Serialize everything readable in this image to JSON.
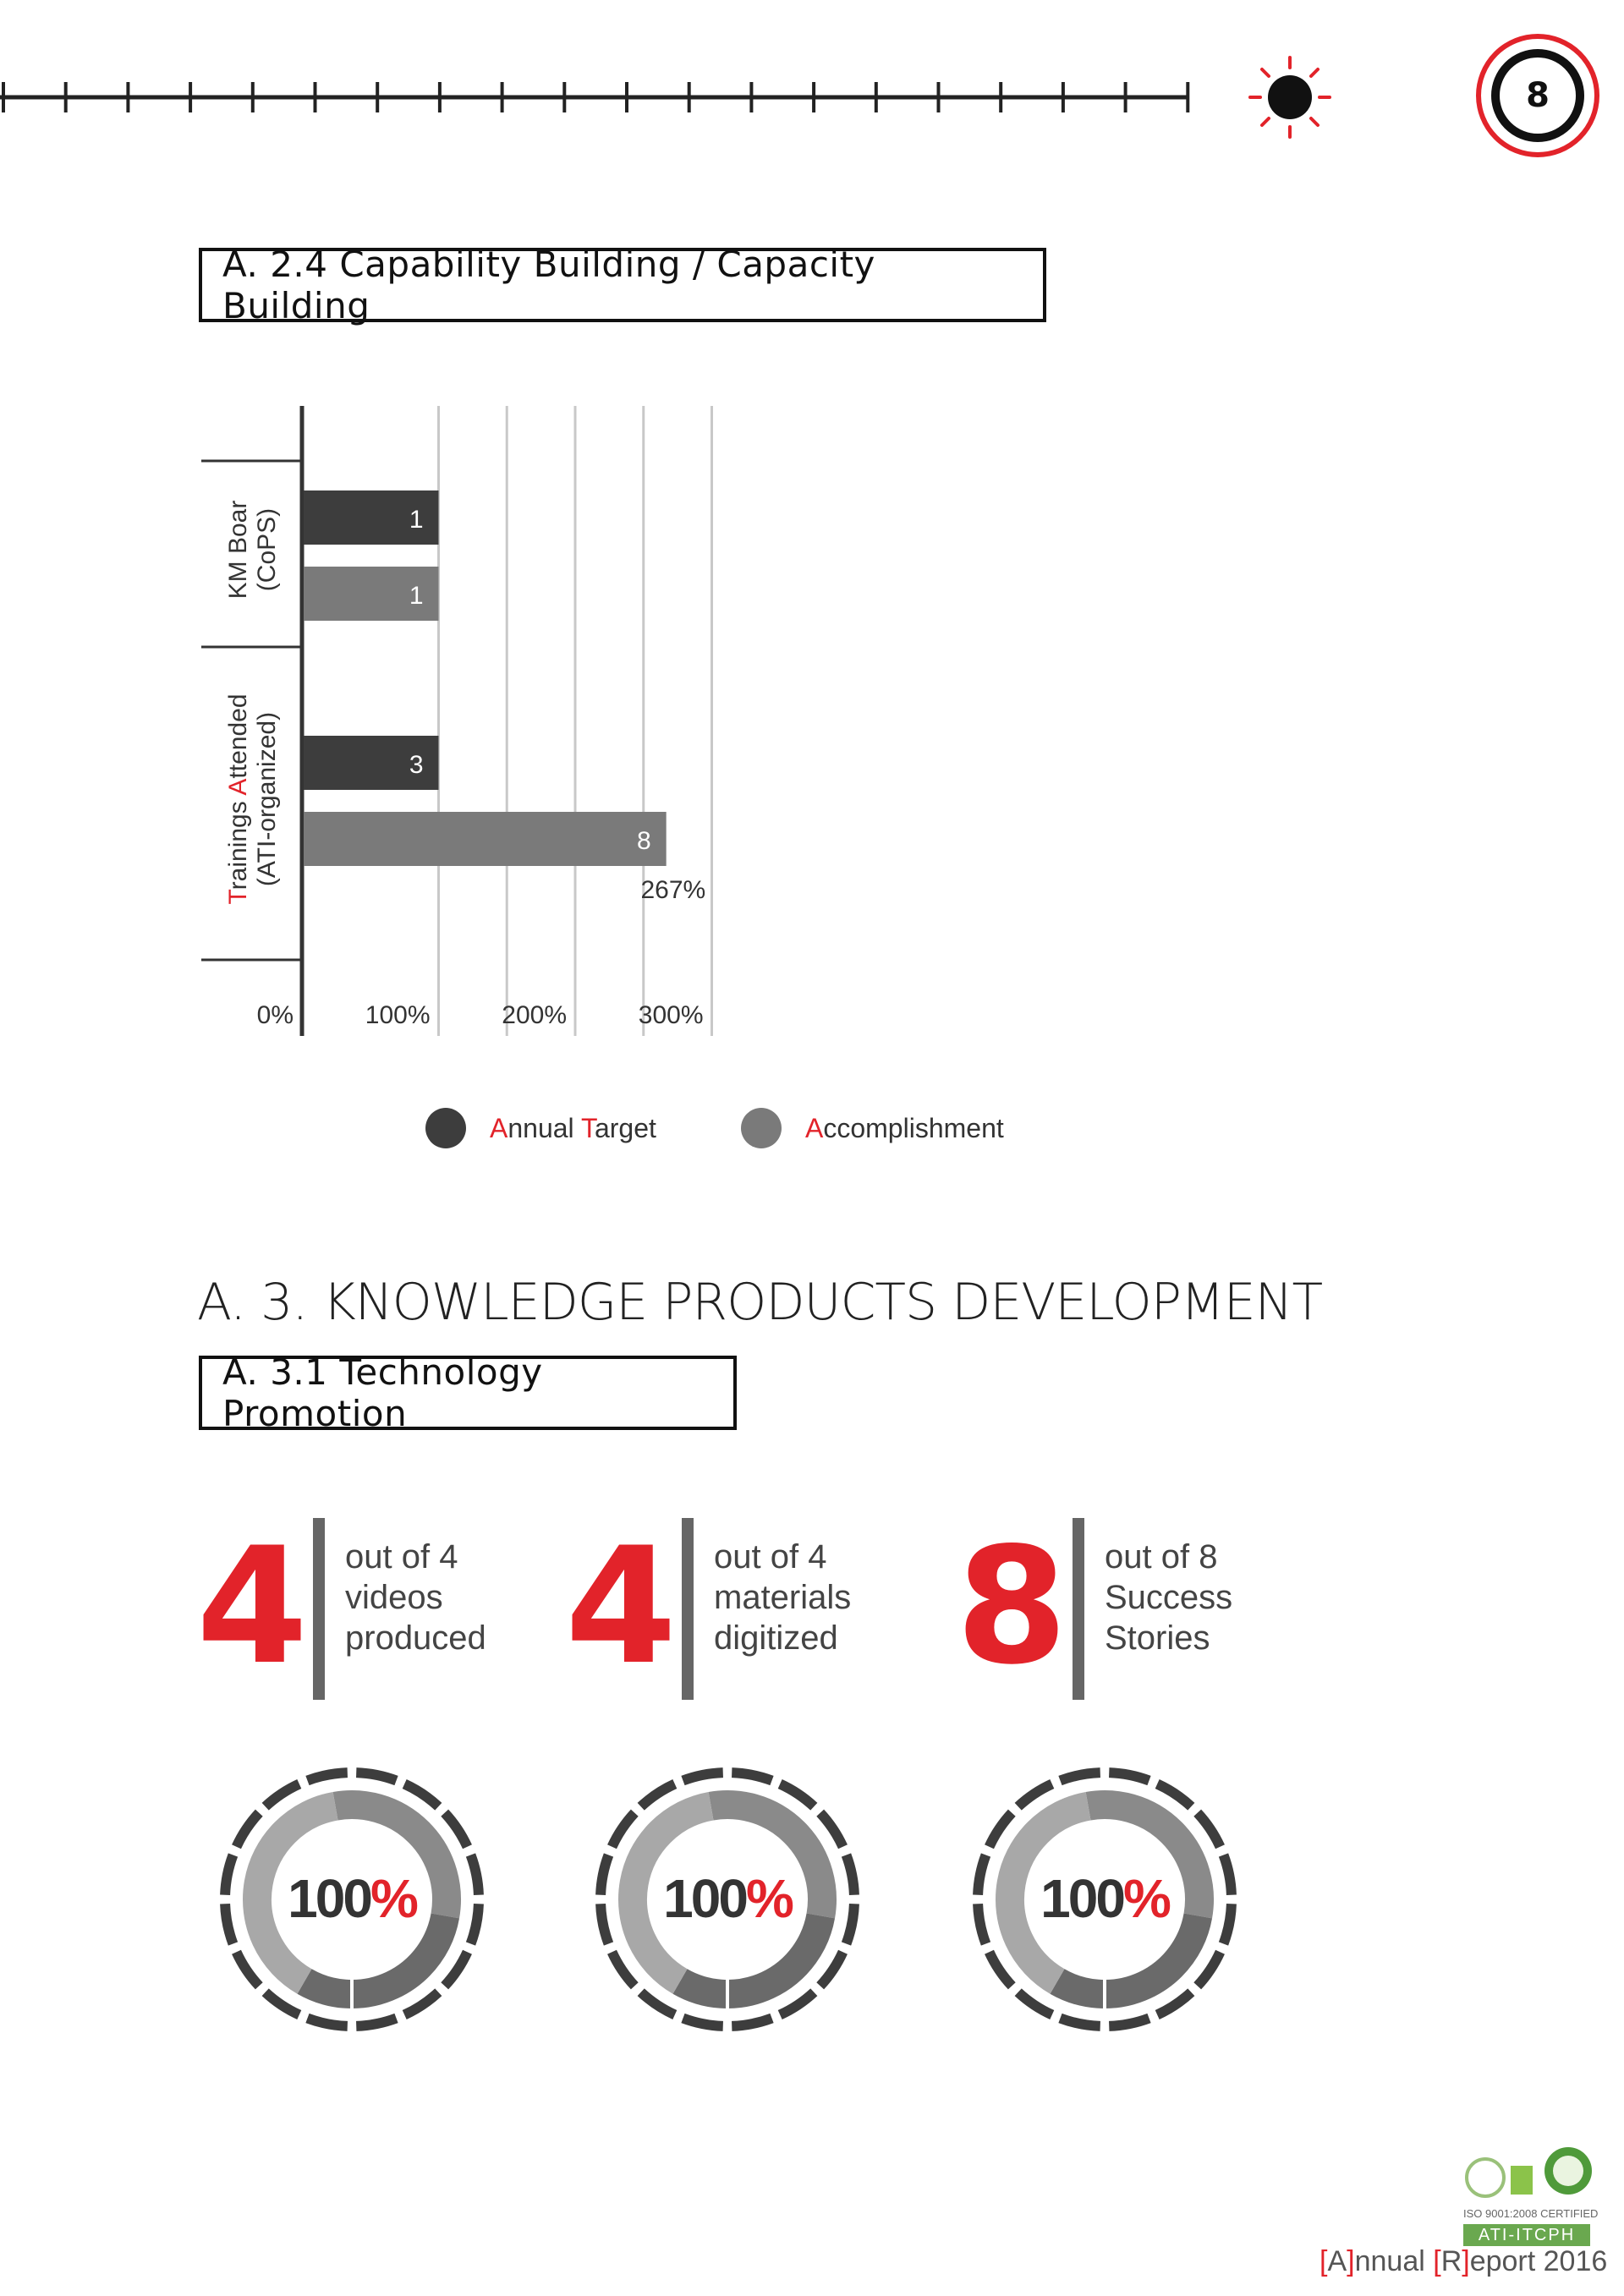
{
  "header": {
    "page_number": "8"
  },
  "section_a24": {
    "title": "A. 2.4 Capability Building / Capacity Building"
  },
  "chart_data": {
    "type": "bar",
    "orientation": "horizontal",
    "categories": [
      {
        "line1": "KM Boar",
        "line2": "(CoPS)",
        "first_letter_highlight": false
      },
      {
        "line1_first": "T",
        "line1_a": "rainings ",
        "line1_hl": "A",
        "line1_b": "ttended",
        "line2": "(ATI-organized)",
        "first_letter_highlight": true
      }
    ],
    "series": [
      {
        "name": "Annual Target",
        "color": "#3d3d3d",
        "values": [
          1,
          3
        ],
        "labels": [
          "1",
          "3"
        ]
      },
      {
        "name": "Accomplishment",
        "color": "#7a7a7a",
        "values": [
          1,
          8
        ],
        "labels": [
          "1",
          "8"
        ]
      }
    ],
    "percent_of_target": [
      100,
      267
    ],
    "annotation": "267%",
    "x_ticks": [
      "0%",
      "100%",
      "200%",
      "300%"
    ],
    "xlim": [
      0,
      300
    ],
    "grid": true,
    "legend": [
      {
        "first": "A",
        "rest": "nnual ",
        "first2": "T",
        "rest2": "arget",
        "color": "#3d3d3d"
      },
      {
        "first": "A",
        "rest": "ccomplishment",
        "first2": "",
        "rest2": "",
        "color": "#7a7a7a"
      }
    ],
    "legend_position": "bottom"
  },
  "section_a3": {
    "heading": "A. 3. KNOWLEDGE PRODUCTS DEVELOPMENT"
  },
  "section_a31": {
    "title": "A. 3.1 Technology Promotion"
  },
  "stats": [
    {
      "number": "4",
      "text": "out of 4\nvideos\nproduced",
      "percent": "100",
      "percent_sign": "%"
    },
    {
      "number": "4",
      "text": "out of 4\nmaterials\ndigitized",
      "percent": "100",
      "percent_sign": "%"
    },
    {
      "number": "8",
      "text": "out of 8\nSuccess\nStories",
      "percent": "100",
      "percent_sign": "%"
    }
  ],
  "footer": {
    "iso": "ISO 9001:2008 CERTIFIED",
    "org": "ATI-ITCPH",
    "report_a": "A",
    "report_a_rest": "nnual ",
    "report_r": "R",
    "report_r_rest": "eport 2016"
  }
}
